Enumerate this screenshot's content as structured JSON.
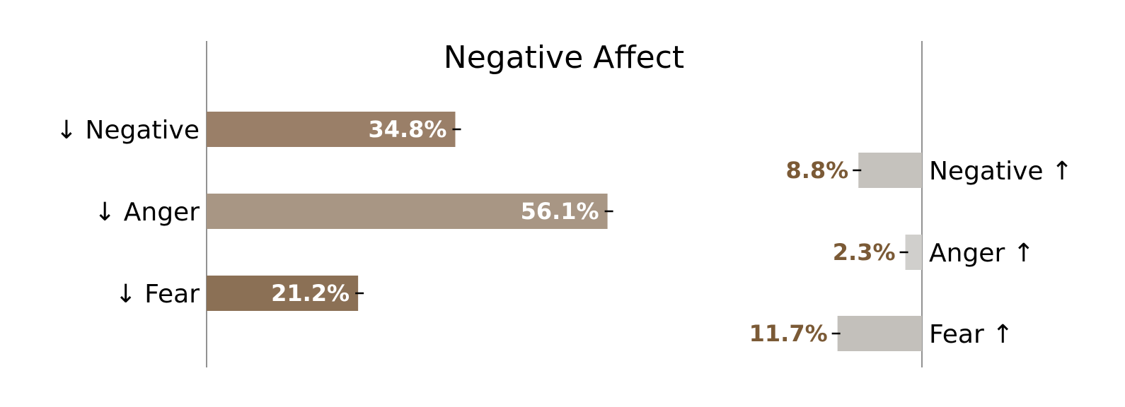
{
  "chart_data": {
    "type": "bar",
    "title": "Negative Affect",
    "xlabel": "",
    "ylabel": "",
    "grid": false,
    "series": [
      {
        "side": "left",
        "categories": [
          "↓ Negative",
          "↓ Anger",
          "↓ Fear"
        ],
        "values": [
          34.8,
          56.1,
          21.2
        ],
        "value_labels": [
          "34.8%",
          "56.1%",
          "21.2%"
        ],
        "colors": [
          "#9a7f68",
          "#a89684",
          "#8b7055"
        ],
        "label_color": "#ffffff"
      },
      {
        "side": "right",
        "categories": [
          "Negative ↑",
          "Anger ↑",
          "Fear ↑"
        ],
        "values": [
          8.8,
          2.3,
          11.7
        ],
        "value_labels": [
          "8.8%",
          "2.3%",
          "11.7%"
        ],
        "colors": [
          "#c5c2bd",
          "#d0cfcc",
          "#c3c0bb"
        ],
        "label_color": "#7b5a36"
      }
    ]
  }
}
